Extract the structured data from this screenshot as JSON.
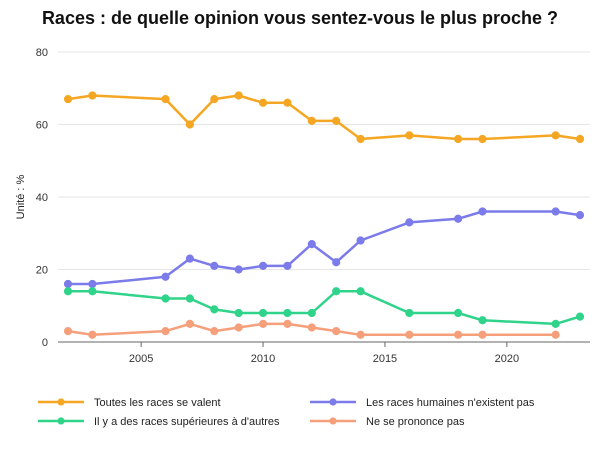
{
  "chart_data": {
    "type": "line",
    "title": "Races : de quelle opinion vous sentez-vous le plus proche ?",
    "ylabel": "Unité : %",
    "xlabel": "",
    "xlim": [
      2002,
      2023
    ],
    "ylim": [
      0,
      80
    ],
    "yticks": [
      0,
      20,
      40,
      60,
      80
    ],
    "xticks": [
      2005,
      2010,
      2015,
      2020
    ],
    "grid": true,
    "legend_position": "bottom",
    "series": [
      {
        "name": "Toutes les races se valent",
        "color": "#f5a623",
        "points": [
          [
            2002,
            67
          ],
          [
            2003,
            68
          ],
          [
            2006,
            67
          ],
          [
            2007,
            60
          ],
          [
            2008,
            67
          ],
          [
            2009,
            68
          ],
          [
            2010,
            66
          ],
          [
            2011,
            66
          ],
          [
            2012,
            61
          ],
          [
            2013,
            61
          ],
          [
            2014,
            56
          ],
          [
            2016,
            57
          ],
          [
            2018,
            56
          ],
          [
            2019,
            56
          ],
          [
            2022,
            57
          ],
          [
            2023,
            56
          ]
        ]
      },
      {
        "name": "Les races humaines n'existent pas",
        "color": "#7b7bea",
        "points": [
          [
            2002,
            16
          ],
          [
            2003,
            16
          ],
          [
            2006,
            18
          ],
          [
            2007,
            23
          ],
          [
            2008,
            21
          ],
          [
            2009,
            20
          ],
          [
            2010,
            21
          ],
          [
            2011,
            21
          ],
          [
            2012,
            27
          ],
          [
            2013,
            22
          ],
          [
            2014,
            28
          ],
          [
            2016,
            33
          ],
          [
            2018,
            34
          ],
          [
            2019,
            36
          ],
          [
            2022,
            36
          ],
          [
            2023,
            35
          ]
        ]
      },
      {
        "name": "Il y a des races supérieures à d'autres",
        "color": "#2fd38a",
        "points": [
          [
            2002,
            14
          ],
          [
            2003,
            14
          ],
          [
            2006,
            12
          ],
          [
            2007,
            12
          ],
          [
            2008,
            9
          ],
          [
            2009,
            8
          ],
          [
            2010,
            8
          ],
          [
            2011,
            8
          ],
          [
            2012,
            8
          ],
          [
            2013,
            14
          ],
          [
            2014,
            14
          ],
          [
            2016,
            8
          ],
          [
            2018,
            8
          ],
          [
            2019,
            6
          ],
          [
            2022,
            5
          ],
          [
            2023,
            7
          ]
        ]
      },
      {
        "name": "Ne se prononce pas",
        "color": "#f59f7b",
        "points": [
          [
            2002,
            3
          ],
          [
            2003,
            2
          ],
          [
            2006,
            3
          ],
          [
            2007,
            5
          ],
          [
            2008,
            3
          ],
          [
            2009,
            4
          ],
          [
            2010,
            5
          ],
          [
            2011,
            5
          ],
          [
            2012,
            4
          ],
          [
            2013,
            3
          ],
          [
            2014,
            2
          ],
          [
            2016,
            2
          ],
          [
            2018,
            2
          ],
          [
            2019,
            2
          ],
          [
            2022,
            2
          ]
        ]
      }
    ]
  }
}
